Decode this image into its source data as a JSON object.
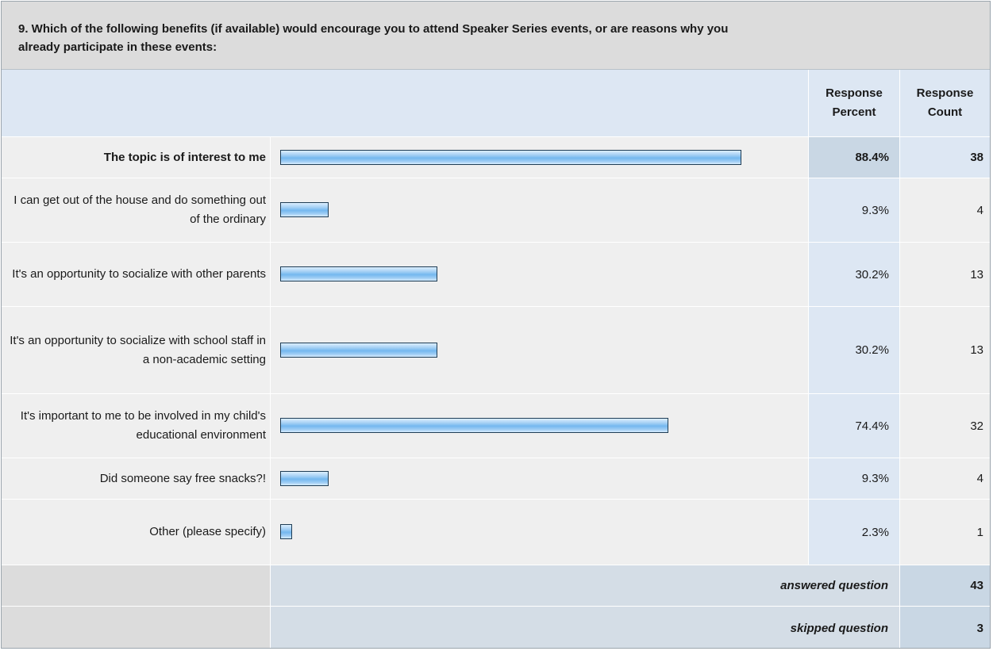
{
  "question": {
    "text": "9. Which of the following benefits (if available) would encourage you to attend Speaker Series events, or are reasons why you already participate in these events:"
  },
  "columns": {
    "percent_line1": "Response",
    "percent_line2": "Percent",
    "count_line1": "Response",
    "count_line2": "Count"
  },
  "chart_data": {
    "type": "bar",
    "orientation": "horizontal",
    "scale_max": 100,
    "categories": [
      "The topic is of interest to me",
      "I can get out of the house and do something out of the ordinary",
      "It's an opportunity to socialize with other parents",
      "It's an opportunity to socialize with school staff in a non-academic setting",
      "It's important to me to be involved in my child's educational environment",
      "Did someone say free snacks?!",
      "Other (please specify)"
    ],
    "values": [
      88.4,
      9.3,
      30.2,
      30.2,
      74.4,
      9.3,
      2.3
    ],
    "percent_labels": [
      "88.4%",
      "9.3%",
      "30.2%",
      "30.2%",
      "74.4%",
      "9.3%",
      "2.3%"
    ],
    "counts": [
      38,
      4,
      13,
      13,
      32,
      4,
      1
    ]
  },
  "footer": {
    "answered_label": "answered question",
    "answered_count": "43",
    "skipped_label": "skipped question",
    "skipped_count": "3"
  },
  "colors": {
    "bar_fill": "#74b8ef",
    "bar_border": "#1f3d55",
    "header_bg": "#dcdcdc",
    "column_header_bg": "#dde7f3",
    "row_bg": "#efefef"
  }
}
